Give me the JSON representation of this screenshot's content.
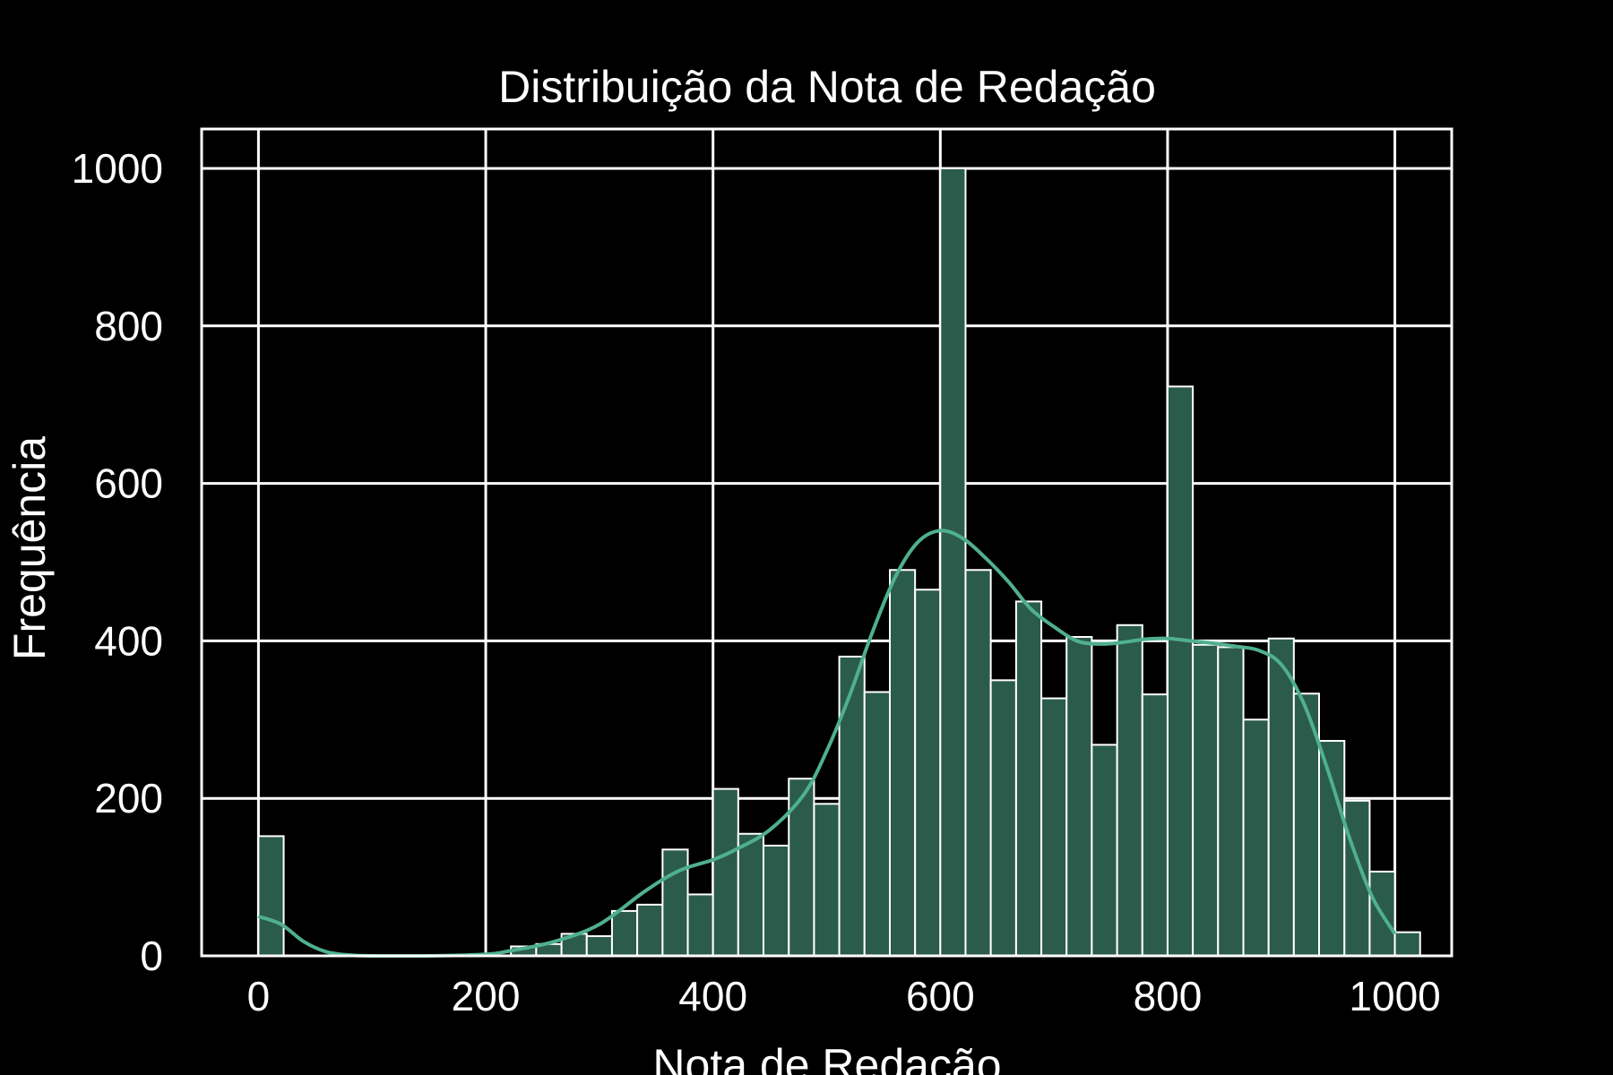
{
  "chart_data": {
    "type": "bar",
    "title": "Distribuição da Nota de Redação",
    "xlabel": "Nota de Redação",
    "ylabel": "Frequência",
    "xlim": [
      -50,
      1050
    ],
    "ylim": [
      0,
      1050
    ],
    "grid": true,
    "xticks": [
      0,
      200,
      400,
      600,
      800,
      1000
    ],
    "yticks": [
      0,
      200,
      400,
      600,
      800,
      1000
    ],
    "colors": {
      "background": "#000000",
      "grid": "#ffffff",
      "bar_fill": "#2b5b4b",
      "bar_edge": "#ffffff",
      "kde": "#4fb08e",
      "text": "#ffffff"
    },
    "bin_width": 22.2,
    "series": [
      {
        "type": "histogram",
        "bins": [
          {
            "x0": 0,
            "x1": 22.2,
            "value": 152
          },
          {
            "x0": 222.2,
            "x1": 244.4,
            "value": 12
          },
          {
            "x0": 244.4,
            "x1": 266.7,
            "value": 15
          },
          {
            "x0": 266.7,
            "x1": 288.9,
            "value": 28
          },
          {
            "x0": 288.9,
            "x1": 311.1,
            "value": 25
          },
          {
            "x0": 311.1,
            "x1": 333.3,
            "value": 57
          },
          {
            "x0": 333.3,
            "x1": 355.6,
            "value": 65
          },
          {
            "x0": 355.6,
            "x1": 377.8,
            "value": 135
          },
          {
            "x0": 377.8,
            "x1": 400.0,
            "value": 78
          },
          {
            "x0": 400.0,
            "x1": 422.2,
            "value": 212
          },
          {
            "x0": 422.2,
            "x1": 444.4,
            "value": 155
          },
          {
            "x0": 444.4,
            "x1": 466.7,
            "value": 140
          },
          {
            "x0": 466.7,
            "x1": 488.9,
            "value": 225
          },
          {
            "x0": 488.9,
            "x1": 511.1,
            "value": 193
          },
          {
            "x0": 511.1,
            "x1": 533.3,
            "value": 380
          },
          {
            "x0": 533.3,
            "x1": 555.6,
            "value": 335
          },
          {
            "x0": 555.6,
            "x1": 577.8,
            "value": 490
          },
          {
            "x0": 577.8,
            "x1": 600.0,
            "value": 465
          },
          {
            "x0": 600.0,
            "x1": 622.2,
            "value": 1000
          },
          {
            "x0": 622.2,
            "x1": 644.4,
            "value": 490
          },
          {
            "x0": 644.4,
            "x1": 666.7,
            "value": 350
          },
          {
            "x0": 666.7,
            "x1": 688.9,
            "value": 450
          },
          {
            "x0": 688.9,
            "x1": 711.1,
            "value": 327
          },
          {
            "x0": 711.1,
            "x1": 733.3,
            "value": 405
          },
          {
            "x0": 733.3,
            "x1": 755.6,
            "value": 268
          },
          {
            "x0": 755.6,
            "x1": 777.8,
            "value": 420
          },
          {
            "x0": 777.8,
            "x1": 800.0,
            "value": 332
          },
          {
            "x0": 800.0,
            "x1": 822.2,
            "value": 723
          },
          {
            "x0": 822.2,
            "x1": 844.4,
            "value": 395
          },
          {
            "x0": 844.4,
            "x1": 866.7,
            "value": 392
          },
          {
            "x0": 866.7,
            "x1": 888.9,
            "value": 300
          },
          {
            "x0": 888.9,
            "x1": 911.1,
            "value": 403
          },
          {
            "x0": 911.1,
            "x1": 933.3,
            "value": 333
          },
          {
            "x0": 933.3,
            "x1": 955.6,
            "value": 273
          },
          {
            "x0": 955.6,
            "x1": 977.8,
            "value": 197
          },
          {
            "x0": 977.8,
            "x1": 1000.0,
            "value": 107
          },
          {
            "x0": 1000.0,
            "x1": 1022.2,
            "value": 30
          }
        ]
      },
      {
        "type": "kde",
        "points": [
          [
            0,
            50
          ],
          [
            20,
            40
          ],
          [
            40,
            18
          ],
          [
            60,
            5
          ],
          [
            80,
            1
          ],
          [
            100,
            0
          ],
          [
            150,
            0
          ],
          [
            200,
            2
          ],
          [
            220,
            6
          ],
          [
            260,
            18
          ],
          [
            300,
            40
          ],
          [
            340,
            82
          ],
          [
            370,
            108
          ],
          [
            400,
            122
          ],
          [
            420,
            135
          ],
          [
            450,
            160
          ],
          [
            480,
            205
          ],
          [
            500,
            260
          ],
          [
            520,
            330
          ],
          [
            540,
            410
          ],
          [
            560,
            480
          ],
          [
            580,
            525
          ],
          [
            600,
            540
          ],
          [
            620,
            530
          ],
          [
            640,
            505
          ],
          [
            660,
            475
          ],
          [
            680,
            440
          ],
          [
            700,
            418
          ],
          [
            720,
            400
          ],
          [
            740,
            396
          ],
          [
            760,
            398
          ],
          [
            780,
            402
          ],
          [
            800,
            403
          ],
          [
            820,
            400
          ],
          [
            840,
            397
          ],
          [
            860,
            393
          ],
          [
            880,
            388
          ],
          [
            900,
            370
          ],
          [
            920,
            320
          ],
          [
            940,
            240
          ],
          [
            960,
            150
          ],
          [
            980,
            75
          ],
          [
            1000,
            28
          ]
        ]
      }
    ]
  }
}
